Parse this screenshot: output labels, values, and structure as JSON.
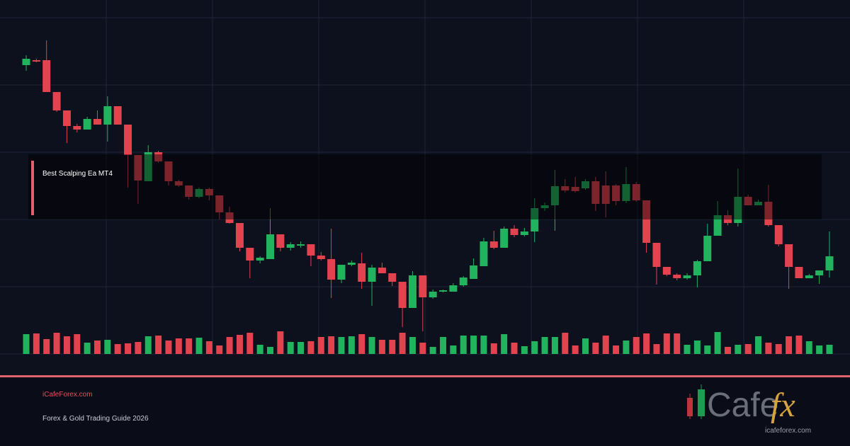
{
  "chart_data": {
    "type": "candlestick",
    "up_color": "#22b35e",
    "down_color": "#e2434f",
    "ylim": [
      0,
      500
    ],
    "yticks": [
      0,
      95,
      190,
      285,
      380,
      475
    ],
    "grid": true,
    "open": [
      408,
      415,
      415,
      370,
      344,
      322,
      317,
      332,
      324,
      350,
      324,
      281,
      244,
      285,
      272,
      244,
      238,
      222,
      233,
      224,
      200,
      185,
      150,
      132,
      134,
      169,
      150,
      153,
      155,
      139,
      134,
      105,
      126,
      128,
      102,
      122,
      114,
      102,
      65,
      111,
      80,
      88,
      88,
      97,
      106,
      124,
      159,
      150,
      177,
      168,
      173,
      206,
      210,
      237,
      236,
      234,
      244,
      238,
      238,
      216,
      240,
      217,
      157,
      123,
      112,
      107,
      111,
      131,
      167,
      196,
      185,
      222,
      210,
      215,
      182,
      155,
      123,
      107,
      111,
      118
    ],
    "high": [
      422,
      417,
      443,
      370,
      344,
      325,
      335,
      344,
      364,
      350,
      324,
      281,
      295,
      287,
      272,
      246,
      238,
      235,
      235,
      224,
      208,
      185,
      150,
      138,
      206,
      169,
      158,
      159,
      155,
      144,
      177,
      126,
      132,
      143,
      126,
      129,
      114,
      102,
      117,
      111,
      91,
      91,
      100,
      110,
      135,
      164,
      174,
      180,
      182,
      178,
      220,
      214,
      260,
      247,
      250,
      247,
      250,
      258,
      240,
      264,
      243,
      217,
      157,
      123,
      114,
      114,
      133,
      184,
      216,
      203,
      262,
      225,
      218,
      239,
      182,
      155,
      123,
      113,
      118,
      173
    ],
    "low": [
      400,
      412,
      370,
      342,
      298,
      313,
      317,
      324,
      300,
      324,
      235,
      212,
      244,
      270,
      238,
      236,
      218,
      220,
      217,
      190,
      184,
      145,
      107,
      128,
      134,
      145,
      146,
      150,
      124,
      132,
      79,
      100,
      124,
      92,
      68,
      114,
      96,
      38,
      65,
      32,
      78,
      87,
      88,
      95,
      106,
      124,
      148,
      150,
      165,
      166,
      158,
      202,
      174,
      228,
      228,
      232,
      202,
      193,
      210,
      213,
      215,
      143,
      98,
      110,
      104,
      105,
      94,
      131,
      167,
      182,
      180,
      210,
      210,
      180,
      152,
      92,
      107,
      107,
      99,
      108
    ],
    "close": [
      417,
      413,
      370,
      344,
      322,
      317,
      332,
      324,
      350,
      324,
      281,
      245,
      285,
      272,
      244,
      238,
      222,
      233,
      224,
      200,
      185,
      150,
      132,
      136,
      169,
      150,
      155,
      155,
      139,
      134,
      105,
      126,
      129,
      102,
      122,
      114,
      102,
      65,
      111,
      80,
      88,
      90,
      97,
      108,
      125,
      159,
      150,
      177,
      168,
      173,
      206,
      210,
      237,
      231,
      230,
      244,
      212,
      212,
      216,
      240,
      217,
      157,
      123,
      112,
      107,
      111,
      131,
      167,
      196,
      185,
      222,
      210,
      215,
      182,
      155,
      123,
      107,
      111,
      118,
      138
    ],
    "volume": [
      28,
      29,
      21,
      30,
      25,
      28,
      16,
      19,
      20,
      14,
      15,
      17,
      25,
      26,
      19,
      22,
      22,
      23,
      18,
      12,
      24,
      27,
      30,
      13,
      10,
      32,
      17,
      17,
      18,
      24,
      25,
      24,
      25,
      28,
      24,
      20,
      20,
      30,
      24,
      16,
      10,
      24,
      12,
      26,
      26,
      26,
      15,
      28,
      16,
      11,
      18,
      24,
      24,
      30,
      12,
      22,
      16,
      26,
      12,
      19,
      24,
      29,
      14,
      29,
      29,
      13,
      19,
      12,
      31,
      10,
      13,
      14,
      25,
      16,
      14,
      25,
      26,
      18,
      12,
      13
    ]
  },
  "banner": {
    "title": "Best Scalping Ea MT4"
  },
  "footer": {
    "site": "iCafeForex.com",
    "subtitle": "Forex & Gold Trading Guide 2026",
    "logo_word": "Cafe",
    "logo_fx": "fx",
    "logo_url": "icafeforex.com"
  }
}
